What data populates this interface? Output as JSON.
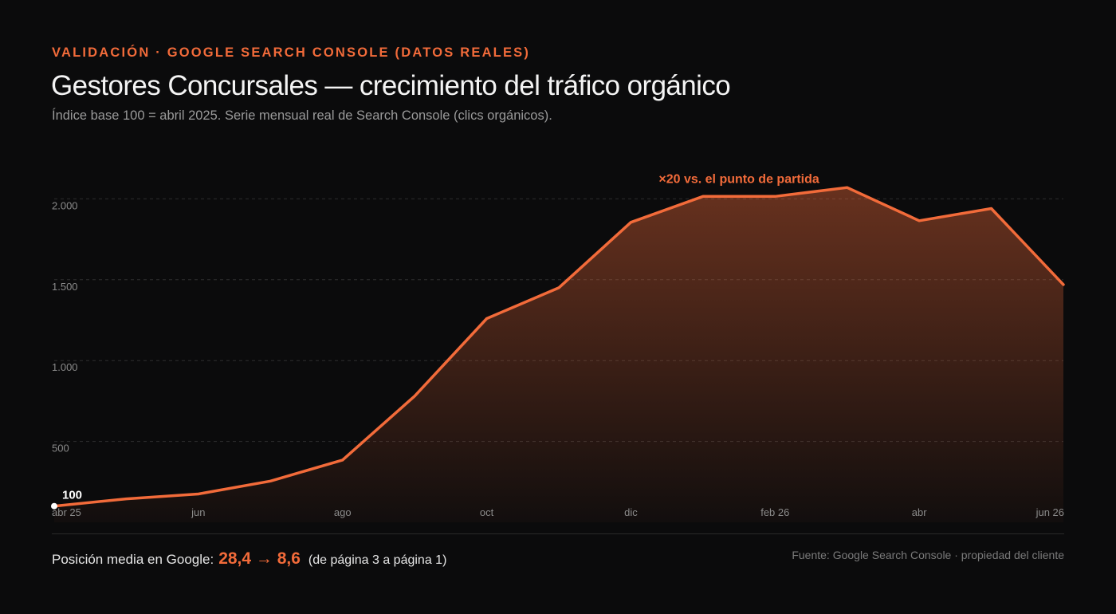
{
  "header": {
    "eyebrow": "VALIDACIÓN · GOOGLE SEARCH CONSOLE (DATOS REALES)",
    "title": "Gestores Concursales — crecimiento del tráfico orgánico",
    "subtitle": "Índice base 100 = abril 2025. Serie mensual real de Search Console (clics orgánicos)."
  },
  "footer": {
    "position_label": "Posición media en Google:",
    "position_value": "28,4 → 8,6",
    "position_note": "(de página 3 a página 1)",
    "source": "Fuente: Google Search Console · propiedad del cliente"
  },
  "colors": {
    "accent": "#f26b3a",
    "background": "#0b0b0c",
    "grid": "#2e2e2e",
    "tick_text": "#8a8a8a"
  },
  "chart_data": {
    "type": "area",
    "x": [
      "abr 25",
      "may 25",
      "jun 25",
      "jul 25",
      "ago 25",
      "sep 25",
      "oct 25",
      "nov 25",
      "dic 25",
      "ene 26",
      "feb 26",
      "mar 26",
      "abr 26",
      "may 26",
      "jun 26"
    ],
    "series": [
      {
        "values": [
          100,
          145,
          175,
          255,
          385,
          780,
          1260,
          1450,
          1855,
          2015,
          2015,
          2070,
          1865,
          1940,
          1470
        ]
      }
    ],
    "x_tick_labels": [
      "abr 25",
      "jun",
      "ago",
      "oct",
      "dic",
      "feb 26",
      "abr",
      "jun 26"
    ],
    "x_tick_indices": [
      0,
      2,
      4,
      6,
      8,
      10,
      12,
      14
    ],
    "y_ticks": [
      500,
      1000,
      1500,
      2000
    ],
    "y_tick_labels": [
      "500",
      "1.000",
      "1.500",
      "2.000"
    ],
    "ylim": [
      0,
      2135
    ],
    "grid": true,
    "annotations": [
      {
        "text": "100",
        "index": 0
      },
      {
        "text": "×20 vs. el punto de partida",
        "index": 10
      }
    ]
  }
}
